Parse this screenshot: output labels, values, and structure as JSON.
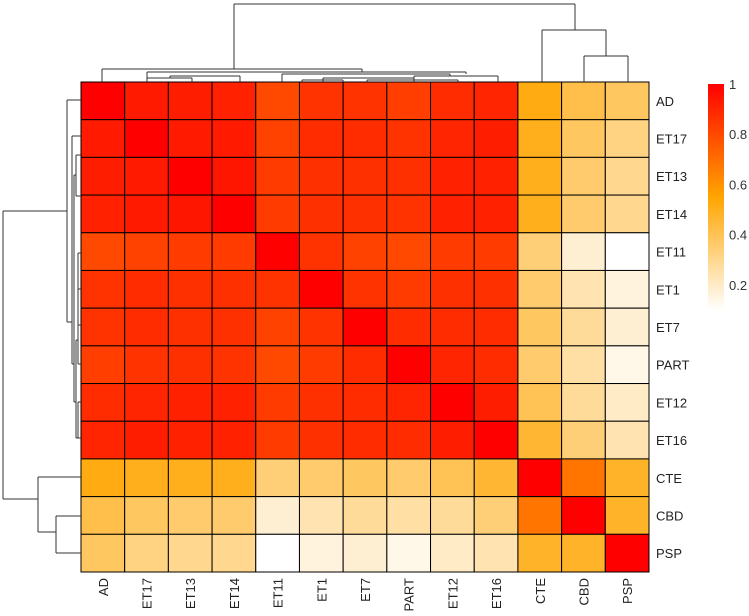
{
  "chart_data": {
    "type": "heatmap",
    "title": "",
    "labels": [
      "AD",
      "ET17",
      "ET13",
      "ET14",
      "ET11",
      "ET1",
      "ET7",
      "PART",
      "ET12",
      "ET16",
      "CTE",
      "CBD",
      "PSP"
    ],
    "row_labels": [
      "AD",
      "ET17",
      "ET13",
      "ET14",
      "ET11",
      "ET1",
      "ET7",
      "PART",
      "ET12",
      "ET16",
      "CTE",
      "CBD",
      "PSP"
    ],
    "col_labels": [
      "AD",
      "ET17",
      "ET13",
      "ET14",
      "ET11",
      "ET1",
      "ET7",
      "PART",
      "ET12",
      "ET16",
      "CTE",
      "CBD",
      "PSP"
    ],
    "matrix": [
      [
        1.0,
        0.93,
        0.92,
        0.91,
        0.8,
        0.86,
        0.86,
        0.83,
        0.88,
        0.9,
        0.52,
        0.42,
        0.38
      ],
      [
        0.93,
        1.0,
        0.93,
        0.93,
        0.82,
        0.88,
        0.88,
        0.86,
        0.9,
        0.92,
        0.5,
        0.38,
        0.32
      ],
      [
        0.92,
        0.93,
        1.0,
        0.94,
        0.84,
        0.87,
        0.87,
        0.87,
        0.91,
        0.91,
        0.5,
        0.36,
        0.3
      ],
      [
        0.91,
        0.93,
        0.94,
        1.0,
        0.84,
        0.87,
        0.87,
        0.86,
        0.91,
        0.91,
        0.5,
        0.36,
        0.3
      ],
      [
        0.8,
        0.82,
        0.84,
        0.84,
        1.0,
        0.86,
        0.82,
        0.8,
        0.84,
        0.84,
        0.34,
        0.18,
        0.1
      ],
      [
        0.86,
        0.88,
        0.87,
        0.87,
        0.86,
        1.0,
        0.86,
        0.84,
        0.87,
        0.87,
        0.36,
        0.24,
        0.16
      ],
      [
        0.86,
        0.88,
        0.87,
        0.87,
        0.82,
        0.86,
        1.0,
        0.88,
        0.88,
        0.88,
        0.38,
        0.28,
        0.18
      ],
      [
        0.83,
        0.86,
        0.87,
        0.86,
        0.8,
        0.84,
        0.88,
        1.0,
        0.9,
        0.88,
        0.36,
        0.26,
        0.14
      ],
      [
        0.88,
        0.9,
        0.91,
        0.91,
        0.84,
        0.87,
        0.88,
        0.9,
        1.0,
        0.92,
        0.4,
        0.28,
        0.2
      ],
      [
        0.9,
        0.92,
        0.91,
        0.91,
        0.84,
        0.87,
        0.88,
        0.88,
        0.92,
        1.0,
        0.46,
        0.34,
        0.24
      ],
      [
        0.52,
        0.5,
        0.5,
        0.5,
        0.34,
        0.36,
        0.38,
        0.36,
        0.4,
        0.46,
        1.0,
        0.68,
        0.48
      ],
      [
        0.42,
        0.38,
        0.36,
        0.36,
        0.18,
        0.24,
        0.28,
        0.26,
        0.28,
        0.34,
        0.68,
        1.0,
        0.48
      ],
      [
        0.38,
        0.32,
        0.3,
        0.3,
        0.1,
        0.16,
        0.18,
        0.14,
        0.2,
        0.24,
        0.48,
        0.48,
        1.0
      ]
    ],
    "color_scale": {
      "min": 0.1,
      "max": 1,
      "low_color": "#ffffff",
      "mid_color": "#ffa500",
      "high_color": "#ff0000"
    },
    "legend": {
      "position": "right",
      "ticks": [
        "1",
        "0.8",
        "0.6",
        "0.4",
        "0.2"
      ],
      "tick_values": [
        1,
        0.8,
        0.6,
        0.4,
        0.2
      ]
    },
    "grid": true,
    "dendrograms": {
      "rows": true,
      "columns": true
    }
  }
}
